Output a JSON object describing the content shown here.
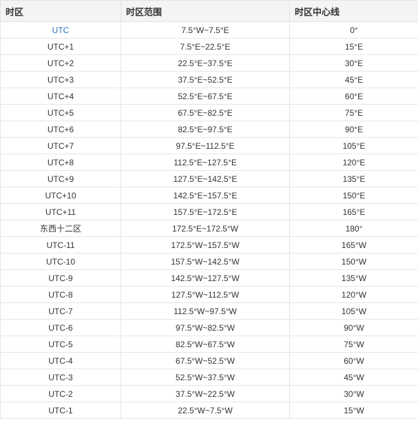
{
  "headers": [
    "时区",
    "时区范围",
    "时区中心线"
  ],
  "rows": [
    {
      "zone": "UTC",
      "range": "7.5°W~7.5°E",
      "center": "0°",
      "link": true
    },
    {
      "zone": "UTC+1",
      "range": "7.5°E~22.5°E",
      "center": "15°E"
    },
    {
      "zone": "UTC+2",
      "range": "22.5°E~37.5°E",
      "center": "30°E"
    },
    {
      "zone": "UTC+3",
      "range": "37.5°E~52.5°E",
      "center": "45°E"
    },
    {
      "zone": "UTC+4",
      "range": "52.5°E~67.5°E",
      "center": "60°E"
    },
    {
      "zone": "UTC+5",
      "range": "67.5°E~82.5°E",
      "center": "75°E"
    },
    {
      "zone": "UTC+6",
      "range": "82.5°E~97.5°E",
      "center": "90°E"
    },
    {
      "zone": "UTC+7",
      "range": "97.5°E~112.5°E",
      "center": "105°E"
    },
    {
      "zone": "UTC+8",
      "range": "112.5°E~127.5°E",
      "center": "120°E"
    },
    {
      "zone": "UTC+9",
      "range": "127.5°E~142.5°E",
      "center": "135°E"
    },
    {
      "zone": "UTC+10",
      "range": "142.5°E~157.5°E",
      "center": "150°E"
    },
    {
      "zone": "UTC+11",
      "range": "157.5°E~172.5°E",
      "center": "165°E"
    },
    {
      "zone": "东西十二区",
      "range": "172.5°E~172.5°W",
      "center": "180°"
    },
    {
      "zone": "UTC-11",
      "range": "172.5°W~157.5°W",
      "center": "165°W"
    },
    {
      "zone": "UTC-10",
      "range": "157.5°W~142.5°W",
      "center": "150°W"
    },
    {
      "zone": "UTC-9",
      "range": "142.5°W~127.5°W",
      "center": "135°W"
    },
    {
      "zone": "UTC-8",
      "range": "127.5°W~112.5°W",
      "center": "120°W"
    },
    {
      "zone": "UTC-7",
      "range": "112.5°W~97.5°W",
      "center": "105°W"
    },
    {
      "zone": "UTC-6",
      "range": "97.5°W~82.5°W",
      "center": "90°W"
    },
    {
      "zone": "UTC-5",
      "range": "82.5°W~67.5°W",
      "center": "75°W"
    },
    {
      "zone": "UTC-4",
      "range": "67.5°W~52.5°W",
      "center": "60°W"
    },
    {
      "zone": "UTC-3",
      "range": "52.5°W~37.5°W",
      "center": "45°W"
    },
    {
      "zone": "UTC-2",
      "range": "37.5°W~22.5°W",
      "center": "30°W"
    },
    {
      "zone": "UTC-1",
      "range": "22.5°W~7.5°W",
      "center": "15°W"
    }
  ],
  "colors": {
    "link": "#2f6fbf",
    "header_bg": "#f4f4f4",
    "border": "#e6e6e6",
    "text": "#333333"
  }
}
